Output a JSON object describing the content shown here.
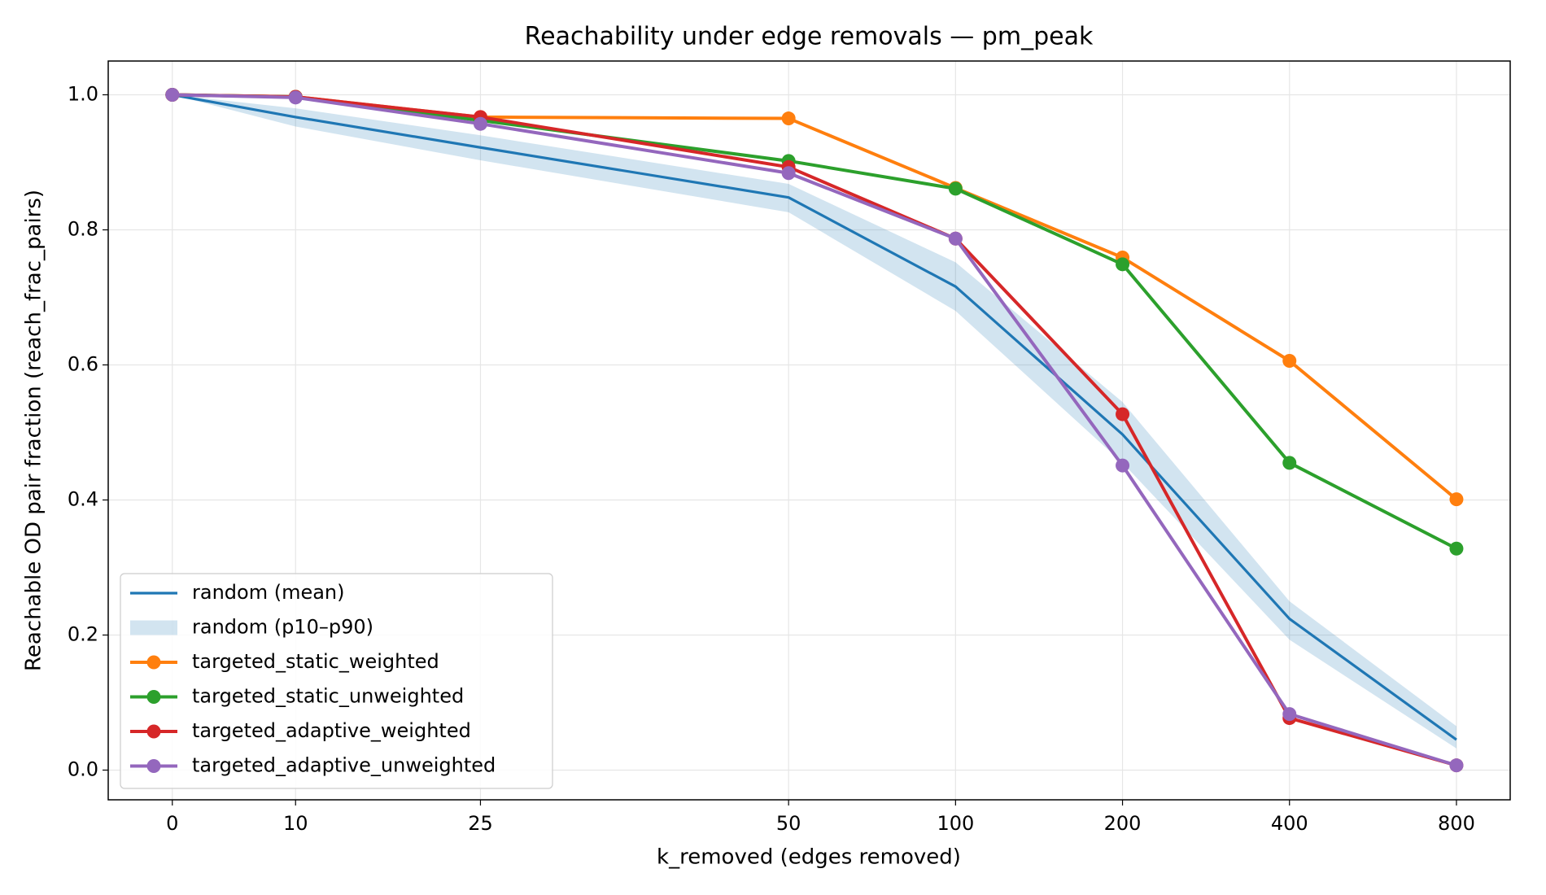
{
  "chart_data": {
    "type": "line",
    "title": "Reachability under edge removals — pm_peak",
    "xlabel": "k_removed (edges removed)",
    "ylabel": "Reachable OD pair fraction (reach_frac_pairs)",
    "xscale": "symlog",
    "linthresh": 50,
    "x": [
      0,
      10,
      25,
      50,
      100,
      200,
      400,
      800
    ],
    "xlim": [
      -5.2,
      1000
    ],
    "xticks": [
      0,
      10,
      25,
      50,
      100,
      200,
      400,
      800
    ],
    "ylim": [
      -0.044,
      1.05
    ],
    "yticks": [
      {
        "value": 0,
        "label": "0.0"
      },
      0.2,
      0.4,
      0.6,
      0.8,
      {
        "value": 1,
        "label": "1.0"
      }
    ],
    "grid": true,
    "legend": "lower left",
    "band": {
      "name": "random (p10–p90)",
      "color": "#1f77b4",
      "lower": [
        1.0,
        0.953,
        0.903,
        0.826,
        0.68,
        0.455,
        0.193,
        0.032
      ],
      "upper": [
        1.0,
        0.98,
        0.94,
        0.868,
        0.752,
        0.545,
        0.25,
        0.065
      ]
    },
    "series": [
      {
        "name": "random (mean)",
        "color": "#1f77b4",
        "markers": false,
        "values": [
          1.0,
          0.967,
          0.922,
          0.848,
          0.716,
          0.497,
          0.224,
          0.045
        ]
      },
      {
        "name": "targeted_static_weighted",
        "color": "#ff7f0e",
        "markers": true,
        "values": [
          1.0,
          0.997,
          0.967,
          0.965,
          0.862,
          0.759,
          0.606,
          0.401
        ]
      },
      {
        "name": "targeted_static_unweighted",
        "color": "#2ca02c",
        "markers": true,
        "values": [
          1.0,
          0.997,
          0.962,
          0.902,
          0.861,
          0.749,
          0.455,
          0.328
        ]
      },
      {
        "name": "targeted_adaptive_weighted",
        "color": "#d62728",
        "markers": true,
        "values": [
          1.0,
          0.997,
          0.967,
          0.893,
          0.787,
          0.527,
          0.077,
          0.007
        ]
      },
      {
        "name": "targeted_adaptive_unweighted",
        "color": "#9467bd",
        "markers": true,
        "values": [
          1.0,
          0.996,
          0.957,
          0.884,
          0.787,
          0.451,
          0.083,
          0.007
        ]
      }
    ]
  }
}
